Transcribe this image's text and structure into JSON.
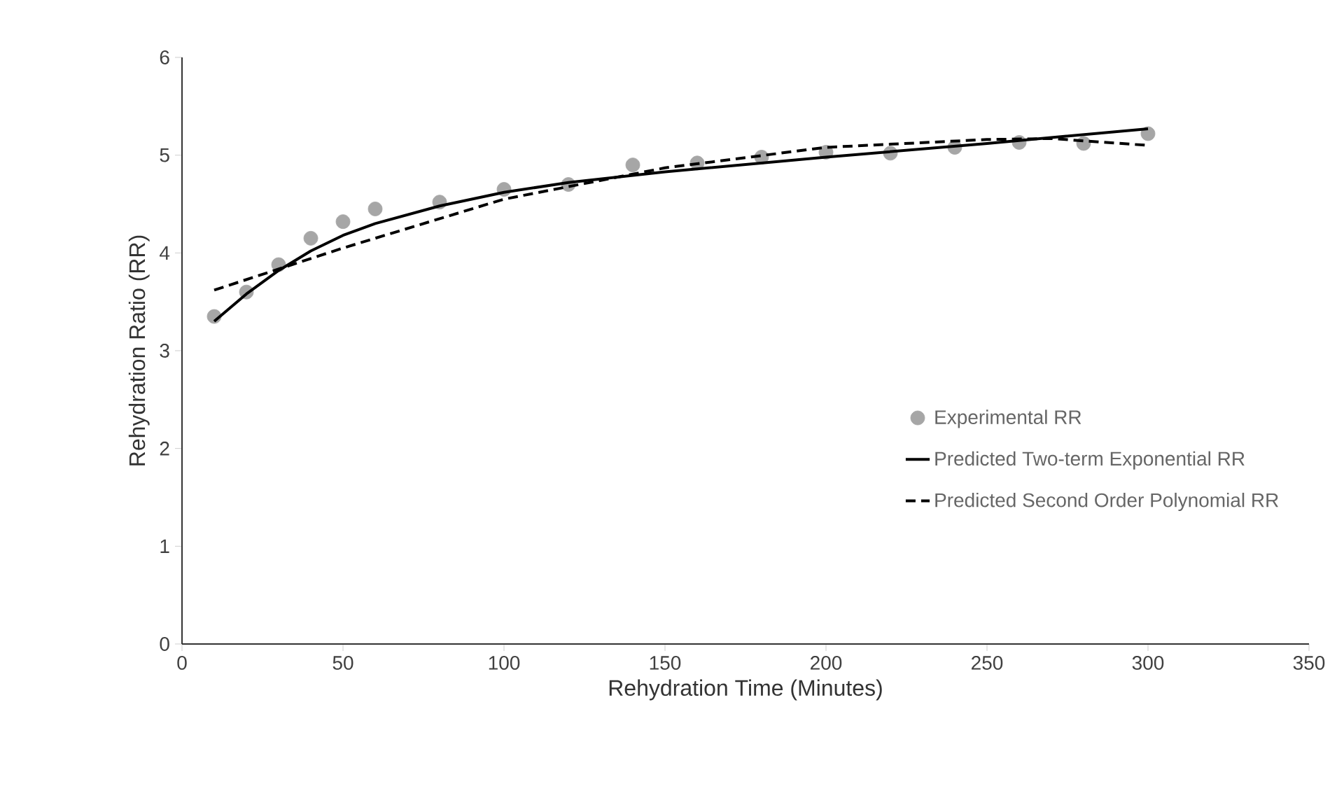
{
  "chart_data": {
    "type": "scatter",
    "xlabel": "Rehydration Time (Minutes)",
    "ylabel": "Rehydration Ratio (RR)",
    "xlim": [
      0,
      350
    ],
    "ylim": [
      0,
      6
    ],
    "xticks": [
      0,
      50,
      100,
      150,
      200,
      250,
      300,
      350
    ],
    "yticks": [
      0,
      1,
      2,
      3,
      4,
      5,
      6
    ],
    "grid": false,
    "legend": "bottom right",
    "series": [
      {
        "name": "Experimental RR",
        "marker": "circle",
        "color": "#a6a6a6",
        "x": [
          10,
          20,
          30,
          40,
          50,
          60,
          80,
          100,
          120,
          140,
          160,
          180,
          200,
          220,
          240,
          260,
          280,
          300
        ],
        "values": [
          3.35,
          3.6,
          3.88,
          4.15,
          4.32,
          4.45,
          4.52,
          4.65,
          4.7,
          4.9,
          4.92,
          4.98,
          5.03,
          5.02,
          5.08,
          5.13,
          5.12,
          5.22
        ]
      },
      {
        "name": "Predicted Two-term Exponential RR",
        "type": "line",
        "line_style": "solid",
        "marker": "none",
        "color": "#000000",
        "x": [
          10,
          20,
          30,
          40,
          50,
          60,
          80,
          100,
          120,
          150,
          200,
          250,
          300
        ],
        "values": [
          3.3,
          3.58,
          3.82,
          4.02,
          4.18,
          4.3,
          4.48,
          4.62,
          4.72,
          4.83,
          4.98,
          5.12,
          5.27
        ]
      },
      {
        "name": "Predicted Second Order Polynomial RR",
        "type": "line",
        "line_style": "dashed",
        "marker": "none",
        "color": "#000000",
        "x": [
          10,
          50,
          100,
          150,
          200,
          250,
          270,
          300
        ],
        "values": [
          3.62,
          4.05,
          4.55,
          4.87,
          5.08,
          5.16,
          5.17,
          5.1
        ]
      }
    ]
  }
}
